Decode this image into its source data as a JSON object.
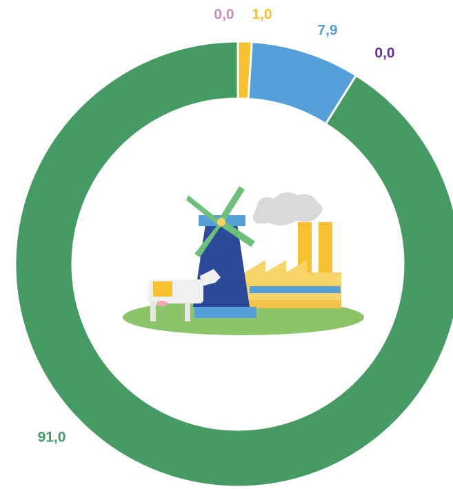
{
  "chart_data": {
    "type": "donut",
    "categories": [
      null,
      null,
      null,
      null,
      null
    ],
    "values": [
      0.0,
      1.0,
      7.9,
      0.0,
      91.0
    ],
    "value_labels": [
      "0,0",
      "1,0",
      "7,9",
      "0,0",
      "91,0"
    ],
    "colors": [
      "#c98fb5",
      "#f6c02e",
      "#55a0d8",
      "#6b2d90",
      "#469a63"
    ]
  }
}
